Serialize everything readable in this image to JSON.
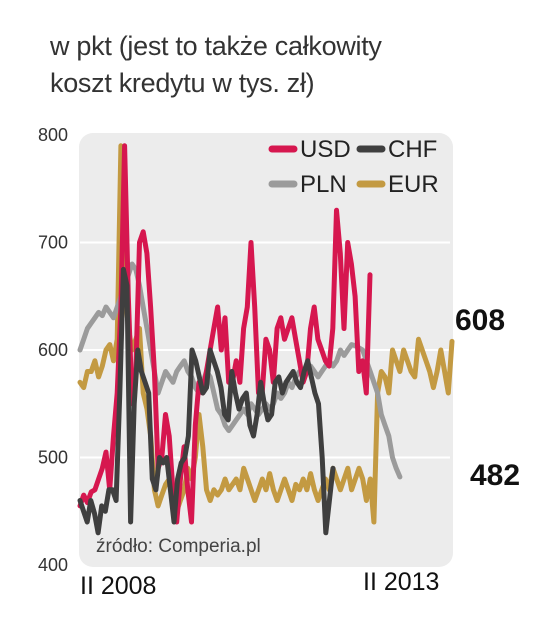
{
  "title_lines": [
    "w pkt (jest to także całkowity",
    "koszt kredytu w tys. zł)"
  ],
  "source": "źródło: Comperia.pl",
  "colors": {
    "USD": "#d6174f",
    "CHF": "#3f3f3f",
    "PLN": "#9b9b9b",
    "EUR": "#c39a42"
  },
  "chart_data": {
    "type": "line",
    "ylim": [
      400,
      800
    ],
    "yticks": [
      "800",
      "700",
      "600",
      "500",
      "400"
    ],
    "x_labels": [
      "II 2008",
      "II 2013"
    ],
    "grid": true,
    "legend_position": "top-right",
    "end_labels": [
      "608",
      "482"
    ],
    "series": [
      {
        "name": "USD",
        "values": [
          455,
          465,
          458,
          468,
          470,
          480,
          490,
          505,
          470,
          520,
          560,
          640,
          790,
          650,
          550,
          580,
          700,
          710,
          690,
          640,
          580,
          490,
          500,
          540,
          520,
          470,
          440,
          480,
          510,
          470,
          440,
          530,
          570,
          560,
          580,
          600,
          620,
          640,
          600,
          630,
          570,
          570,
          590,
          570,
          620,
          640,
          700,
          640,
          560,
          560,
          610,
          600,
          570,
          620,
          630,
          610,
          620,
          630,
          610,
          590,
          570,
          580,
          620,
          640,
          610,
          600,
          590,
          585,
          620,
          730,
          690,
          620,
          700,
          680,
          650,
          580,
          590,
          560,
          670
        ],
        "x_start": 0
      },
      {
        "name": "CHF",
        "values": [
          460,
          450,
          440,
          460,
          448,
          430,
          455,
          450,
          470,
          470,
          460,
          560,
          675,
          660,
          440,
          550,
          600,
          580,
          570,
          560,
          480,
          470,
          500,
          495,
          500,
          470,
          440,
          480,
          495,
          500,
          520,
          600,
          590,
          575,
          560,
          565,
          600,
          590,
          580,
          565,
          540,
          535,
          580,
          560,
          545,
          555,
          560,
          530,
          520,
          540,
          570,
          550,
          535,
          540,
          570,
          575,
          560,
          570,
          575,
          580,
          570,
          565,
          580,
          590,
          575,
          560,
          550,
          500,
          430,
          460,
          490
        ],
        "x_start": 0
      },
      {
        "name": "PLN",
        "values": [
          600,
          610,
          620,
          625,
          630,
          635,
          632,
          640,
          635,
          630,
          640,
          650,
          660,
          670,
          680,
          675,
          660,
          640,
          620,
          600,
          580,
          560,
          570,
          580,
          575,
          570,
          580,
          585,
          590,
          580,
          575,
          565,
          560,
          570,
          580,
          575,
          560,
          545,
          540,
          530,
          525,
          530,
          535,
          540,
          545,
          540,
          550,
          545,
          540,
          545,
          550,
          545,
          550,
          560,
          555,
          560,
          570,
          565,
          575,
          580,
          575,
          580,
          585,
          580,
          575,
          580,
          585,
          590,
          585,
          590,
          600,
          595,
          600,
          605,
          604,
          602,
          600,
          590,
          580,
          570,
          560,
          540,
          530,
          520,
          500,
          490,
          482
        ],
        "x_start": 0
      },
      {
        "name": "EUR",
        "values": [
          570,
          565,
          580,
          580,
          590,
          575,
          585,
          600,
          605,
          590,
          610,
          790,
          660,
          620,
          600,
          610,
          620,
          560,
          545,
          520,
          470,
          455,
          465,
          475,
          480,
          470,
          450,
          460,
          470,
          490,
          480,
          500,
          540,
          510,
          470,
          460,
          470,
          465,
          470,
          480,
          470,
          475,
          480,
          470,
          490,
          480,
          470,
          460,
          470,
          480,
          470,
          485,
          470,
          460,
          470,
          480,
          470,
          460,
          475,
          470,
          480,
          470,
          485,
          470,
          460,
          470,
          480,
          470,
          490,
          480,
          470,
          480,
          490,
          470,
          480,
          490,
          480,
          460,
          480,
          440,
          560,
          580,
          575,
          560,
          600,
          590,
          580,
          600,
          590,
          580,
          575,
          610,
          600,
          590,
          580,
          565,
          580,
          600,
          580,
          560,
          608
        ],
        "x_start": 0
      }
    ]
  }
}
